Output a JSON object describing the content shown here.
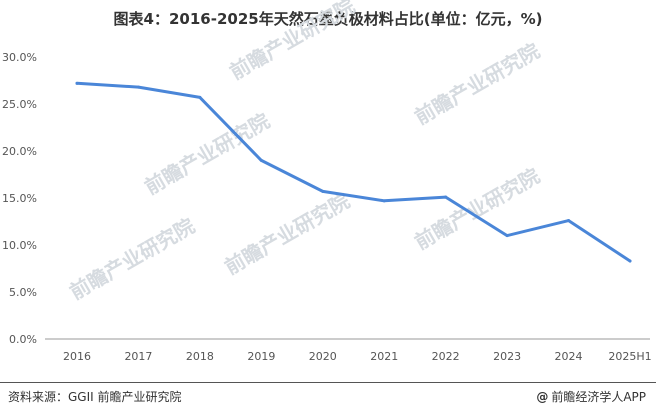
{
  "title": "图表4：2016-2025年天然石墨负极材料占比(单位：亿元，%)",
  "source": "资料来源：GGII 前瞻产业研究院",
  "credit": "前瞻经济学人APP",
  "watermark": "前瞻产业研究院",
  "colors": {
    "line": "#4a86d8",
    "axis": "#999999",
    "text": "#555555"
  },
  "chart_data": {
    "type": "line",
    "x": [
      "2016",
      "2017",
      "2018",
      "2019",
      "2020",
      "2021",
      "2022",
      "2023",
      "2024",
      "2025H1"
    ],
    "series": [
      {
        "values": [
          27.2,
          26.8,
          25.7,
          19.0,
          15.7,
          14.7,
          15.1,
          11.0,
          12.6,
          8.3
        ]
      }
    ],
    "y_ticks": [
      "0.0%",
      "5.0%",
      "10.0%",
      "15.0%",
      "20.0%",
      "25.0%",
      "30.0%"
    ],
    "ylim": [
      0,
      30
    ],
    "grid": false,
    "legend": "none"
  }
}
